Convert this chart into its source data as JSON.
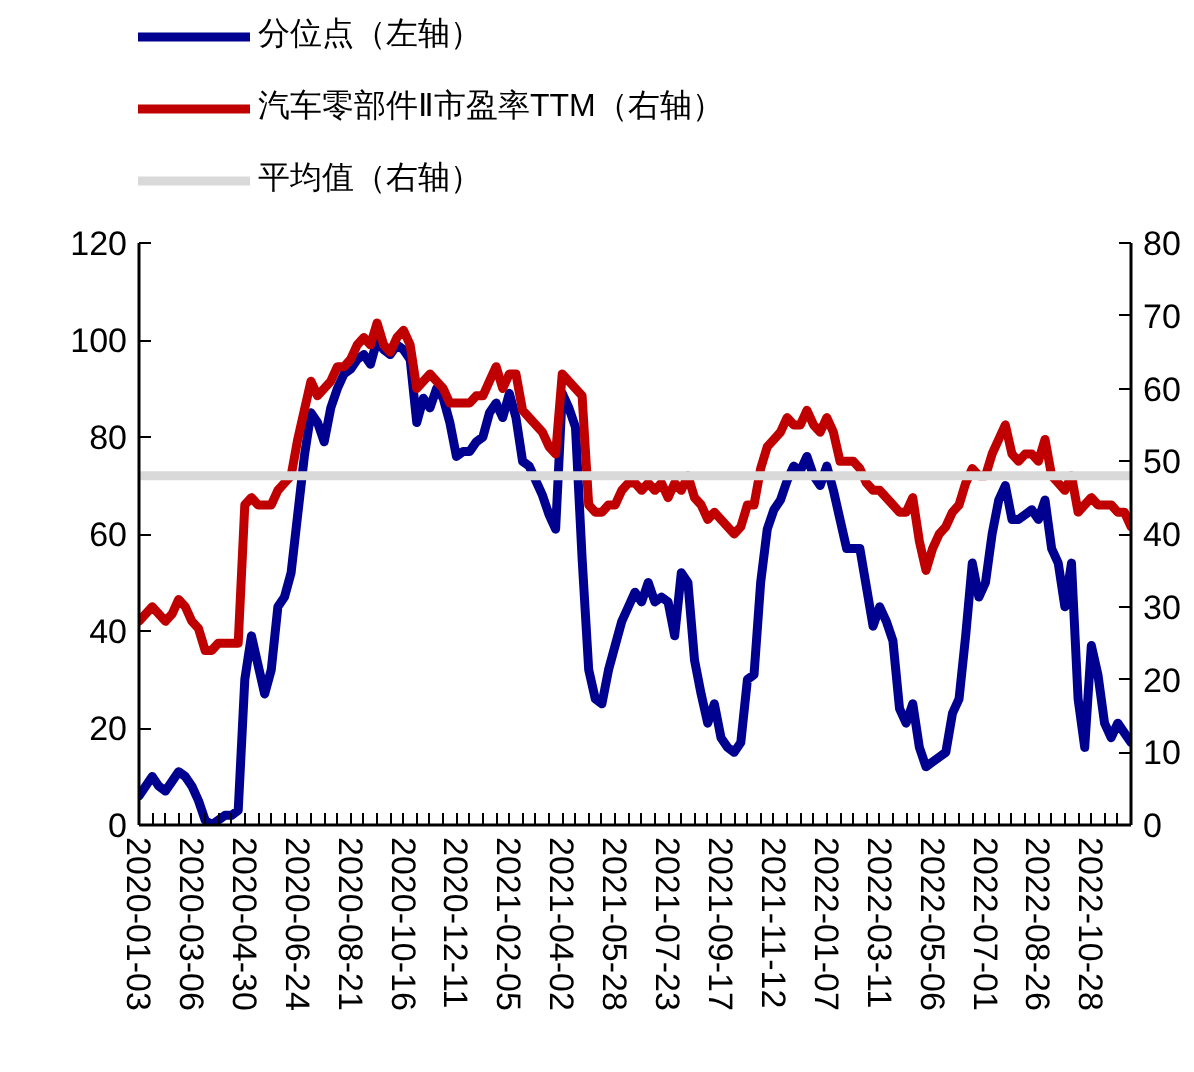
{
  "chart_data": {
    "type": "line",
    "categories": [
      "2020-01-03",
      null,
      null,
      null,
      null,
      null,
      null,
      null,
      "2020-03-06",
      null,
      null,
      null,
      null,
      null,
      null,
      null,
      "2020-04-30",
      null,
      null,
      null,
      null,
      null,
      null,
      null,
      "2020-06-24",
      null,
      null,
      null,
      null,
      null,
      null,
      null,
      "2020-08-21",
      null,
      null,
      null,
      null,
      null,
      null,
      null,
      "2020-10-16",
      null,
      null,
      null,
      null,
      null,
      null,
      null,
      "2020-12-11",
      null,
      null,
      null,
      null,
      null,
      null,
      null,
      "2021-02-05",
      null,
      null,
      null,
      null,
      null,
      null,
      null,
      "2021-04-02",
      null,
      null,
      null,
      null,
      null,
      null,
      null,
      "2021-05-28",
      null,
      null,
      null,
      null,
      null,
      null,
      null,
      "2021-07-23",
      null,
      null,
      null,
      null,
      null,
      null,
      null,
      "2021-09-17",
      null,
      null,
      null,
      null,
      null,
      null,
      null,
      "2021-11-12",
      null,
      null,
      null,
      null,
      null,
      null,
      null,
      "2022-01-07",
      null,
      null,
      null,
      null,
      null,
      null,
      null,
      "2022-03-11",
      null,
      null,
      null,
      null,
      null,
      null,
      null,
      "2022-05-06",
      null,
      null,
      null,
      null,
      null,
      null,
      null,
      "2022-07-01",
      null,
      null,
      null,
      null,
      null,
      null,
      null,
      "2022-08-26",
      null,
      null,
      null,
      null,
      null,
      null,
      null,
      "2022-10-28",
      null,
      null,
      null,
      null,
      null,
      null
    ],
    "series": [
      {
        "name": "分位点（左轴）",
        "color": "#000090",
        "values": [
          6,
          8,
          10,
          8,
          7,
          9,
          11,
          10,
          8,
          5,
          1,
          0,
          1,
          2,
          2,
          3,
          30,
          39,
          33,
          27,
          32,
          45,
          47,
          52,
          64,
          76,
          85,
          83,
          79,
          86,
          90,
          93,
          94,
          96,
          97,
          95,
          100,
          98,
          97,
          99,
          98,
          96,
          83,
          88,
          86,
          90,
          88,
          83,
          76,
          77,
          77,
          79,
          80,
          85,
          87,
          84,
          89,
          84,
          75,
          74,
          71,
          68,
          64,
          61,
          89,
          86,
          82,
          55,
          32,
          26,
          25,
          32,
          37,
          42,
          45,
          48,
          46,
          50,
          46,
          47,
          46,
          39,
          52,
          50,
          34,
          27,
          21,
          25,
          18,
          16,
          15,
          17,
          30,
          31,
          50,
          61,
          65,
          67,
          71,
          74,
          73,
          76,
          72,
          70,
          74,
          69,
          63,
          57,
          57,
          57,
          49,
          41,
          45,
          42,
          38,
          24,
          21,
          25,
          16,
          12,
          13,
          14,
          15,
          23,
          26,
          39,
          54,
          47,
          50,
          60,
          67,
          70,
          63,
          63,
          64,
          65,
          63,
          67,
          57,
          54,
          45,
          54,
          26,
          16,
          37,
          31,
          21,
          18,
          21,
          19,
          17
        ]
      },
      {
        "name": "汽车零部件Ⅱ市盈率TTM（右轴）",
        "color": "#c00000",
        "axis": "y2",
        "values": [
          28,
          29,
          30,
          29,
          28,
          29,
          31,
          30,
          28,
          27,
          24,
          24,
          25,
          25,
          25,
          25,
          44,
          45,
          44,
          44,
          44,
          46,
          47,
          48,
          53,
          57,
          61,
          59,
          60,
          61,
          63,
          63,
          64,
          66,
          67,
          66,
          69,
          66,
          65,
          67,
          68,
          66,
          60,
          61,
          62,
          61,
          60,
          58,
          58,
          58,
          58,
          59,
          59,
          61,
          63,
          60,
          62,
          62,
          57,
          56,
          55,
          54,
          52,
          51,
          62,
          61,
          60,
          59,
          44,
          43,
          43,
          44,
          44,
          46,
          47,
          47,
          46,
          47,
          46,
          47,
          45,
          47,
          46,
          48,
          45,
          44,
          42,
          43,
          42,
          41,
          40,
          41,
          44,
          44,
          49,
          52,
          53,
          54,
          56,
          55,
          55,
          57,
          55,
          54,
          56,
          54,
          50,
          50,
          50,
          49,
          47,
          46,
          46,
          45,
          44,
          43,
          43,
          45,
          39,
          35,
          38,
          40,
          41,
          43,
          44,
          47,
          49,
          48,
          48,
          51,
          53,
          55,
          51,
          50,
          51,
          51,
          50,
          53,
          48,
          47,
          46,
          48,
          43,
          44,
          45,
          44,
          44,
          44,
          43,
          43,
          41
        ]
      },
      {
        "name": "平均值（右轴）",
        "color": "#d9d9d9",
        "axis": "y2",
        "values": [
          48,
          48,
          48,
          48,
          48,
          48,
          48,
          48,
          48,
          48,
          48,
          48,
          48,
          48,
          48,
          48,
          48,
          48,
          48,
          48,
          48,
          48,
          48,
          48,
          48,
          48,
          48,
          48,
          48,
          48,
          48,
          48,
          48,
          48,
          48,
          48,
          48,
          48,
          48,
          48,
          48,
          48,
          48,
          48,
          48,
          48,
          48,
          48,
          48,
          48,
          48,
          48,
          48,
          48,
          48,
          48,
          48,
          48,
          48,
          48,
          48,
          48,
          48,
          48,
          48,
          48,
          48,
          48,
          48,
          48,
          48,
          48,
          48,
          48,
          48,
          48,
          48,
          48,
          48,
          48,
          48,
          48,
          48,
          48,
          48,
          48,
          48,
          48,
          48,
          48,
          48,
          48,
          48,
          48,
          48,
          48,
          48,
          48,
          48,
          48,
          48,
          48,
          48,
          48,
          48,
          48,
          48,
          48,
          48,
          48,
          48,
          48,
          48,
          48,
          48,
          48,
          48,
          48,
          48,
          48,
          48,
          48,
          48,
          48,
          48,
          48,
          48,
          48,
          48,
          48,
          48,
          48,
          48,
          48,
          48,
          48,
          48,
          48,
          48,
          48,
          48,
          48,
          48,
          48,
          48,
          48,
          48,
          48,
          48,
          48,
          48
        ]
      }
    ],
    "ylim": [
      0,
      120
    ],
    "yticks": [
      0,
      20,
      40,
      60,
      80,
      100,
      120
    ],
    "y2lim": [
      0,
      80
    ],
    "y2ticks": [
      0,
      10,
      20,
      30,
      40,
      50,
      60,
      70,
      80
    ],
    "legend": "top left"
  }
}
